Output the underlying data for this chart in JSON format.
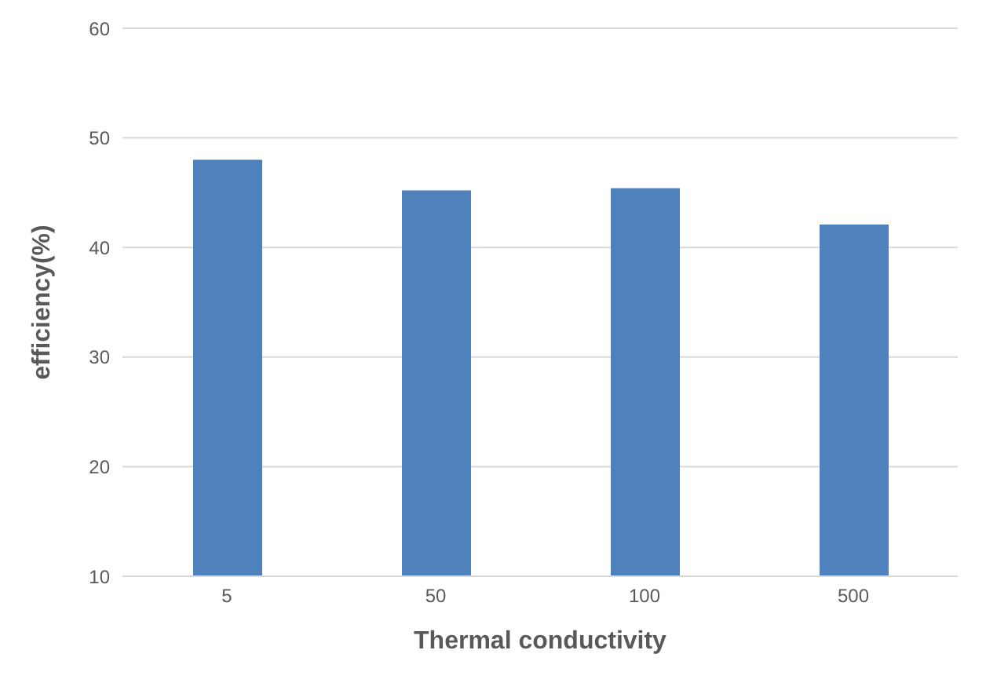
{
  "chart_data": {
    "type": "bar",
    "xlabel": "Thermal conductivity",
    "ylabel": "efficiency(%)",
    "categories": [
      "5",
      "50",
      "100",
      "500"
    ],
    "values": [
      48.0,
      45.2,
      45.4,
      42.1
    ],
    "color": "#4f81bd",
    "ylim": [
      10,
      60
    ],
    "yticks": [
      10,
      20,
      30,
      40,
      50,
      60
    ],
    "grid": "y"
  }
}
